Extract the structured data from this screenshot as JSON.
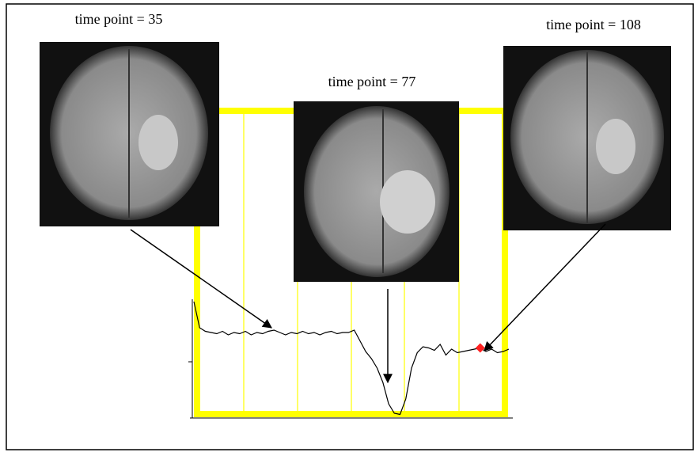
{
  "chart_data": {
    "type": "line",
    "annotations": [
      "time point = 35",
      "time point = 77",
      "time point = 108"
    ],
    "x": [
      8,
      10,
      12,
      14,
      16,
      18,
      20,
      22,
      24,
      26,
      28,
      30,
      32,
      34,
      36,
      38,
      40,
      42,
      44,
      46,
      48,
      50,
      52,
      54,
      56,
      58,
      60,
      62,
      64,
      66,
      68,
      70,
      72,
      74,
      76,
      78,
      80,
      82,
      84,
      86,
      88,
      90,
      92,
      94,
      96,
      98,
      100,
      102,
      104,
      106,
      108,
      110,
      112,
      114,
      116,
      118
    ],
    "series": [
      {
        "color": "#000000",
        "values": [
          98,
          76,
          73,
          72,
          71,
          73,
          70,
          72,
          71,
          73,
          70,
          72,
          71,
          73,
          74,
          72,
          70,
          72,
          71,
          73,
          71,
          72,
          70,
          72,
          73,
          71,
          72,
          72,
          74,
          65,
          56,
          50,
          42,
          30,
          12,
          4,
          3,
          16,
          42,
          55,
          60,
          59,
          57,
          62,
          53,
          58,
          55,
          56,
          57,
          58,
          59,
          56,
          58,
          55,
          56,
          58
        ]
      }
    ],
    "xlim": [
      8,
      118
    ],
    "ylim": [
      0,
      100
    ],
    "marker": {
      "x": 108,
      "color": "#ff2020"
    },
    "frame_color": "#ffff00"
  }
}
